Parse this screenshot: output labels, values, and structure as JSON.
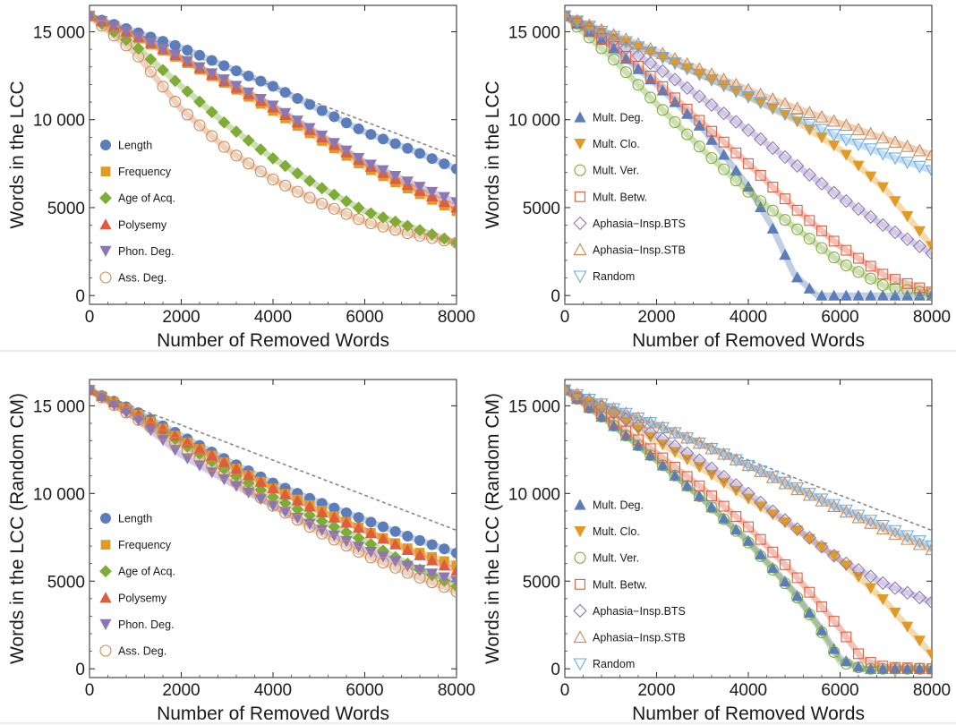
{
  "colors": {
    "blue": "#5B7DB9",
    "orange": "#E09B26",
    "green": "#7FAC37",
    "red": "#E05C3E",
    "purple": "#8C77B5",
    "brown": "#D08855",
    "lightblue": "#6DACE0",
    "reference_line": "#888888"
  },
  "chart_data": [
    {
      "id": "top-left",
      "type": "scatter",
      "xlabel": "Number of Removed Words",
      "ylabel": "Words in the LCC",
      "xlim": [
        0,
        8000
      ],
      "ylim": [
        -500,
        16500
      ],
      "xticks": [
        0,
        2000,
        4000,
        6000,
        8000
      ],
      "xtick_labels": [
        "0",
        "2000",
        "4000",
        "6000",
        "8000"
      ],
      "yticks": [
        0,
        5000,
        10000,
        15000
      ],
      "ytick_labels": [
        "0",
        "5000",
        "10 000",
        "15 000"
      ],
      "legend_position": "left-middle",
      "reference_line": {
        "x": [
          0,
          8000
        ],
        "y": [
          15900,
          7900
        ]
      },
      "series": [
        {
          "name": "Length",
          "color": "blue",
          "marker": "circle",
          "filled": true,
          "x": [
            0,
            1000,
            2000,
            3000,
            4000,
            5000,
            6000,
            7000,
            8000
          ],
          "y": [
            15900,
            15000,
            14100,
            13000,
            11900,
            10600,
            9300,
            8300,
            7200
          ]
        },
        {
          "name": "Frequency",
          "color": "orange",
          "marker": "square",
          "filled": true,
          "x": [
            0,
            1000,
            2000,
            3000,
            4000,
            5000,
            6000,
            7000,
            8000
          ],
          "y": [
            15900,
            14700,
            13400,
            12000,
            10500,
            8900,
            7300,
            6000,
            4800
          ]
        },
        {
          "name": "Age of Acq.",
          "color": "green",
          "marker": "diamond",
          "filled": true,
          "x": [
            0,
            1000,
            2000,
            3000,
            4000,
            5000,
            6000,
            7000,
            8000
          ],
          "y": [
            15900,
            14200,
            11900,
            9700,
            7800,
            6200,
            4800,
            3900,
            3000
          ]
        },
        {
          "name": "Polysemy",
          "color": "red",
          "marker": "triangle-up",
          "filled": true,
          "x": [
            0,
            1000,
            2000,
            3000,
            4000,
            5000,
            6000,
            7000,
            8000
          ],
          "y": [
            15900,
            14800,
            13500,
            12100,
            10700,
            9100,
            7500,
            6200,
            5000
          ]
        },
        {
          "name": "Phon. Deg.",
          "color": "purple",
          "marker": "triangle-down",
          "filled": true,
          "x": [
            0,
            1000,
            2000,
            3000,
            4000,
            5000,
            6000,
            7000,
            8000
          ],
          "y": [
            15900,
            14800,
            13500,
            12200,
            10800,
            9200,
            7600,
            6400,
            5300
          ]
        },
        {
          "name": "Ass. Deg.",
          "color": "brown",
          "marker": "circle",
          "filled": false,
          "x": [
            0,
            1000,
            2000,
            3000,
            4000,
            5000,
            6000,
            7000,
            8000
          ],
          "y": [
            15900,
            13800,
            10600,
            8300,
            6600,
            5300,
            4200,
            3500,
            3000
          ]
        }
      ],
      "legend": [
        "Length",
        "Frequency",
        "Age of Acq.",
        "Polysemy",
        "Phon. Deg.",
        "Ass. Deg."
      ]
    },
    {
      "id": "top-right",
      "type": "scatter",
      "xlabel": "Number of Removed Words",
      "ylabel": "Words in the LCC",
      "xlim": [
        0,
        8000
      ],
      "ylim": [
        -500,
        16500
      ],
      "xticks": [
        0,
        2000,
        4000,
        6000,
        8000
      ],
      "xtick_labels": [
        "0",
        "2000",
        "4000",
        "6000",
        "8000"
      ],
      "yticks": [
        0,
        5000,
        10000,
        15000
      ],
      "ytick_labels": [
        "0",
        "5000",
        "10 000",
        "15 000"
      ],
      "legend_position": "left-middle",
      "reference_line": null,
      "series": [
        {
          "name": "Mult. Deg.",
          "color": "blue",
          "marker": "triangle-up",
          "filled": true,
          "x": [
            0,
            1000,
            2000,
            3000,
            3500,
            4000,
            4500,
            5000,
            5500,
            6000,
            7000,
            8000
          ],
          "y": [
            15900,
            14200,
            12000,
            9500,
            7900,
            6200,
            4000,
            1200,
            0,
            0,
            0,
            0
          ]
        },
        {
          "name": "Mult. Clo.",
          "color": "orange",
          "marker": "triangle-down",
          "filled": true,
          "x": [
            0,
            1000,
            2000,
            3000,
            4000,
            5000,
            6000,
            7000,
            8000
          ],
          "y": [
            15900,
            14700,
            13700,
            12500,
            11300,
            10000,
            8300,
            6000,
            2800
          ]
        },
        {
          "name": "Mult. Ver.",
          "color": "green",
          "marker": "circle",
          "filled": false,
          "x": [
            0,
            1000,
            2000,
            3000,
            4000,
            5000,
            6000,
            7000,
            8000
          ],
          "y": [
            15900,
            13600,
            10900,
            8300,
            5900,
            3900,
            1900,
            500,
            100
          ]
        },
        {
          "name": "Mult. Betw.",
          "color": "red",
          "marker": "square",
          "filled": false,
          "x": [
            0,
            1000,
            2000,
            3000,
            4000,
            5000,
            6000,
            7000,
            8000
          ],
          "y": [
            15900,
            14300,
            12200,
            9800,
            7500,
            5000,
            2800,
            1100,
            200
          ]
        },
        {
          "name": "Aphasia−Insp.BTS",
          "color": "purple",
          "marker": "diamond",
          "filled": false,
          "x": [
            0,
            1000,
            2000,
            3000,
            4000,
            5000,
            6000,
            7000,
            8000
          ],
          "y": [
            15900,
            14600,
            13000,
            11200,
            9400,
            7500,
            5600,
            3900,
            2400
          ]
        },
        {
          "name": "Aphasia−Insp.STB",
          "color": "brown",
          "marker": "triangle-up",
          "filled": false,
          "x": [
            0,
            1000,
            2000,
            3000,
            4000,
            5000,
            6000,
            7000,
            8000
          ],
          "y": [
            15900,
            14900,
            13900,
            12800,
            11700,
            10700,
            9800,
            8900,
            8000
          ]
        },
        {
          "name": "Random",
          "color": "lightblue",
          "marker": "triangle-down",
          "filled": false,
          "x": [
            0,
            1000,
            2000,
            3000,
            4000,
            5000,
            6000,
            7000,
            8000
          ],
          "y": [
            15900,
            14800,
            13700,
            12500,
            11300,
            10100,
            9000,
            8000,
            7100
          ]
        }
      ],
      "legend": [
        "Mult. Deg.",
        "Mult. Clo.",
        "Mult. Ver.",
        "Mult. Betw.",
        "Aphasia−Insp.BTS",
        "Aphasia−Insp.STB",
        "Random"
      ]
    },
    {
      "id": "bottom-left",
      "type": "scatter",
      "xlabel": "Number of Removed Words",
      "ylabel": "Words in the LCC (Random CM)",
      "xlim": [
        0,
        8000
      ],
      "ylim": [
        -500,
        16500
      ],
      "xticks": [
        0,
        2000,
        4000,
        6000,
        8000
      ],
      "xtick_labels": [
        "0",
        "2000",
        "4000",
        "6000",
        "8000"
      ],
      "yticks": [
        0,
        5000,
        10000,
        15000
      ],
      "ytick_labels": [
        "0",
        "5000",
        "10 000",
        "15 000"
      ],
      "legend_position": "left-bottom",
      "reference_line": {
        "x": [
          0,
          8000
        ],
        "y": [
          15900,
          7900
        ]
      },
      "series": [
        {
          "name": "Length",
          "color": "blue",
          "marker": "circle",
          "filled": true,
          "x": [
            0,
            1000,
            2000,
            3000,
            4000,
            5000,
            6000,
            7000,
            8000
          ],
          "y": [
            15900,
            14700,
            13300,
            11900,
            10600,
            9500,
            8500,
            7500,
            6600
          ]
        },
        {
          "name": "Frequency",
          "color": "orange",
          "marker": "square",
          "filled": true,
          "x": [
            0,
            1000,
            2000,
            3000,
            4000,
            5000,
            6000,
            7000,
            8000
          ],
          "y": [
            15900,
            14600,
            13100,
            11700,
            10300,
            9100,
            7900,
            6800,
            5900
          ]
        },
        {
          "name": "Age of Acq.",
          "color": "green",
          "marker": "diamond",
          "filled": true,
          "x": [
            0,
            1000,
            2000,
            3000,
            4000,
            5000,
            6000,
            7000,
            8000
          ],
          "y": [
            15900,
            14500,
            12900,
            11300,
            9800,
            8500,
            7300,
            5900,
            4700
          ]
        },
        {
          "name": "Polysemy",
          "color": "red",
          "marker": "triangle-up",
          "filled": true,
          "x": [
            0,
            1000,
            2000,
            3000,
            4000,
            5000,
            6000,
            7000,
            8000
          ],
          "y": [
            15900,
            14600,
            13100,
            11700,
            10300,
            9000,
            7900,
            6700,
            5600
          ]
        },
        {
          "name": "Phon. Deg.",
          "color": "purple",
          "marker": "triangle-down",
          "filled": true,
          "x": [
            0,
            1000,
            2000,
            3000,
            4000,
            5000,
            6000,
            7000,
            8000
          ],
          "y": [
            15900,
            14300,
            12200,
            10700,
            9300,
            8000,
            6800,
            5800,
            5000
          ]
        },
        {
          "name": "Ass. Deg.",
          "color": "brown",
          "marker": "circle",
          "filled": false,
          "x": [
            0,
            1000,
            2000,
            3000,
            4000,
            5000,
            6000,
            7000,
            8000
          ],
          "y": [
            15900,
            14300,
            12700,
            11000,
            9300,
            7800,
            6500,
            5400,
            4400
          ]
        }
      ],
      "legend": [
        "Length",
        "Frequency",
        "Age of Acq.",
        "Polysemy",
        "Phon. Deg.",
        "Ass. Deg."
      ]
    },
    {
      "id": "bottom-right",
      "type": "scatter",
      "xlabel": "Number of Removed Words",
      "ylabel": "Words in the LCC (Random CM)",
      "xlim": [
        0,
        8000
      ],
      "ylim": [
        -500,
        16500
      ],
      "xticks": [
        0,
        2000,
        4000,
        6000,
        8000
      ],
      "xtick_labels": [
        "0",
        "2000",
        "4000",
        "6000",
        "8000"
      ],
      "yticks": [
        0,
        5000,
        10000,
        15000
      ],
      "ytick_labels": [
        "0",
        "5000",
        "10 000",
        "15 000"
      ],
      "legend_position": "left-bottom",
      "reference_line": {
        "x": [
          0,
          8000
        ],
        "y": [
          15900,
          7900
        ]
      },
      "series": [
        {
          "name": "Mult. Deg.",
          "color": "blue",
          "marker": "triangle-up",
          "filled": true,
          "x": [
            0,
            1000,
            2000,
            3000,
            4000,
            5000,
            5500,
            6000,
            6500,
            7000,
            8000
          ],
          "y": [
            15900,
            14000,
            11900,
            9700,
            7300,
            4400,
            2600,
            600,
            0,
            0,
            0
          ]
        },
        {
          "name": "Mult. Clo.",
          "color": "orange",
          "marker": "triangle-down",
          "filled": true,
          "x": [
            0,
            1000,
            2000,
            3000,
            4000,
            5000,
            6000,
            7000,
            8000
          ],
          "y": [
            15900,
            14600,
            13000,
            11400,
            9700,
            8000,
            6200,
            3800,
            800
          ]
        },
        {
          "name": "Mult. Ver.",
          "color": "green",
          "marker": "circle",
          "filled": false,
          "x": [
            0,
            1000,
            2000,
            3000,
            4000,
            5000,
            5500,
            6000,
            6500,
            7000,
            8000
          ],
          "y": [
            15900,
            14000,
            11900,
            9700,
            7200,
            4300,
            2500,
            400,
            0,
            0,
            0
          ]
        },
        {
          "name": "Mult. Betw.",
          "color": "red",
          "marker": "square",
          "filled": false,
          "x": [
            0,
            1000,
            2000,
            3000,
            4000,
            5000,
            6000,
            6500,
            7000,
            8000
          ],
          "y": [
            15900,
            14200,
            12300,
            10300,
            8100,
            5400,
            2300,
            500,
            100,
            0
          ]
        },
        {
          "name": "Aphasia−Insp.BTS",
          "color": "purple",
          "marker": "diamond",
          "filled": false,
          "x": [
            0,
            1000,
            2000,
            3000,
            4000,
            5000,
            6000,
            7000,
            8000
          ],
          "y": [
            15900,
            14700,
            13300,
            11800,
            10000,
            8100,
            6200,
            4800,
            3800
          ]
        },
        {
          "name": "Aphasia−Insp.STB",
          "color": "brown",
          "marker": "triangle-up",
          "filled": false,
          "x": [
            0,
            1000,
            2000,
            3000,
            4000,
            5000,
            6000,
            7000,
            8000
          ],
          "y": [
            15900,
            14900,
            13900,
            12800,
            11600,
            10300,
            9100,
            7900,
            6800
          ]
        },
        {
          "name": "Random",
          "color": "lightblue",
          "marker": "triangle-down",
          "filled": false,
          "x": [
            0,
            1000,
            2000,
            3000,
            4000,
            5000,
            6000,
            7000,
            8000
          ],
          "y": [
            15900,
            14900,
            13900,
            12800,
            11600,
            10400,
            9200,
            8100,
            7000
          ]
        }
      ],
      "legend": [
        "Mult. Deg.",
        "Mult. Clo.",
        "Mult. Ver.",
        "Mult. Betw.",
        "Aphasia−Insp.BTS",
        "Aphasia−Insp.STB",
        "Random"
      ]
    }
  ]
}
